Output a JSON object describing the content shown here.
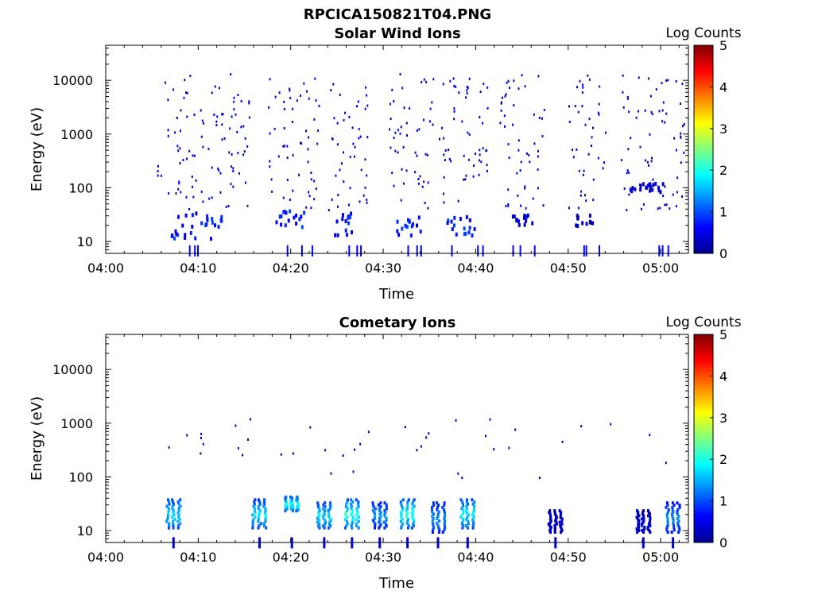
{
  "figure": {
    "title": "RPCICA150821T04.PNG"
  },
  "colormap": "jet",
  "chart_data": [
    {
      "type": "heatmap",
      "title": "Solar Wind Ions",
      "xlabel": "Time",
      "ylabel": "Energy (eV)",
      "y_scale": "log",
      "x_range_minutes_after_0400": [
        0,
        63
      ],
      "y_range_eV": [
        6,
        45000
      ],
      "x_ticks": [
        "04:00",
        "04:10",
        "04:20",
        "04:30",
        "04:40",
        "04:50",
        "05:00"
      ],
      "y_ticks": [
        "10",
        "100",
        "1000",
        "10000"
      ],
      "colorbar": {
        "label": "Log Counts",
        "range": [
          0,
          5
        ],
        "ticks": [
          "0",
          "1",
          "2",
          "3",
          "4",
          "5"
        ]
      },
      "clusters": [
        {
          "start": "04:05.5",
          "end": "04:15.5",
          "dense_low_energy_band_eV": [
            12,
            40
          ],
          "max_log_counts": 1.0
        },
        {
          "start": "04:17.5",
          "end": "04:23.0",
          "dense_low_energy_band_eV": [
            20,
            40
          ],
          "max_log_counts": 1.0
        },
        {
          "start": "04:24.0",
          "end": "04:28.5",
          "dense_low_energy_band_eV": [
            14,
            40
          ],
          "max_log_counts": 1.0
        },
        {
          "start": "04:30.5",
          "end": "04:35.5",
          "dense_low_energy_band_eV": [
            14,
            35
          ],
          "max_log_counts": 1.0
        },
        {
          "start": "04:36.0",
          "end": "04:41.5",
          "dense_low_energy_band_eV": [
            14,
            40
          ],
          "max_log_counts": 1.0
        },
        {
          "start": "04:42.5",
          "end": "04:47.5",
          "dense_low_energy_band_eV": [
            22,
            35
          ],
          "max_log_counts": 0.5
        },
        {
          "start": "04:50.0",
          "end": "04:54.0",
          "dense_low_energy_band_eV": [
            20,
            35
          ],
          "max_log_counts": 0.5
        },
        {
          "start": "04:55.5",
          "end": "05:02.5",
          "dense_low_energy_band_eV": [
            90,
            130
          ],
          "max_log_counts": 0.5
        }
      ]
    },
    {
      "type": "heatmap",
      "title": "Cometary Ions",
      "xlabel": "Time",
      "ylabel": "Energy (eV)",
      "y_scale": "log",
      "x_range_minutes_after_0400": [
        0,
        63
      ],
      "y_range_eV": [
        6,
        45000
      ],
      "x_ticks": [
        "04:00",
        "04:10",
        "04:20",
        "04:30",
        "04:40",
        "04:50",
        "05:00"
      ],
      "y_ticks": [
        "10",
        "100",
        "1000",
        "10000"
      ],
      "colorbar": {
        "label": "Log Counts",
        "range": [
          0,
          5
        ],
        "ticks": [
          "0",
          "1",
          "2",
          "3",
          "4",
          "5"
        ]
      },
      "bursts": [
        {
          "t": "04:07.2",
          "energy_eV": [
            12,
            40
          ],
          "max_log_counts": 2.0
        },
        {
          "t": "04:16.5",
          "energy_eV": [
            12,
            40
          ],
          "max_log_counts": 2.0
        },
        {
          "t": "04:20.0",
          "energy_eV": [
            25,
            45
          ],
          "max_log_counts": 2.3
        },
        {
          "t": "04:23.5",
          "energy_eV": [
            12,
            35
          ],
          "max_log_counts": 2.0
        },
        {
          "t": "04:26.5",
          "energy_eV": [
            12,
            40
          ],
          "max_log_counts": 2.3
        },
        {
          "t": "04:29.5",
          "energy_eV": [
            12,
            35
          ],
          "max_log_counts": 1.6
        },
        {
          "t": "04:32.5",
          "energy_eV": [
            12,
            40
          ],
          "max_log_counts": 2.2
        },
        {
          "t": "04:35.8",
          "energy_eV": [
            10,
            35
          ],
          "max_log_counts": 1.6
        },
        {
          "t": "04:39.0",
          "energy_eV": [
            12,
            40
          ],
          "max_log_counts": 2.1
        },
        {
          "t": "04:48.5",
          "energy_eV": [
            10,
            25
          ],
          "max_log_counts": 0.5
        },
        {
          "t": "04:58.0",
          "energy_eV": [
            10,
            25
          ],
          "max_log_counts": 0.5
        },
        {
          "t": "05:01.2",
          "energy_eV": [
            10,
            35
          ],
          "max_log_counts": 1.5
        }
      ]
    }
  ]
}
